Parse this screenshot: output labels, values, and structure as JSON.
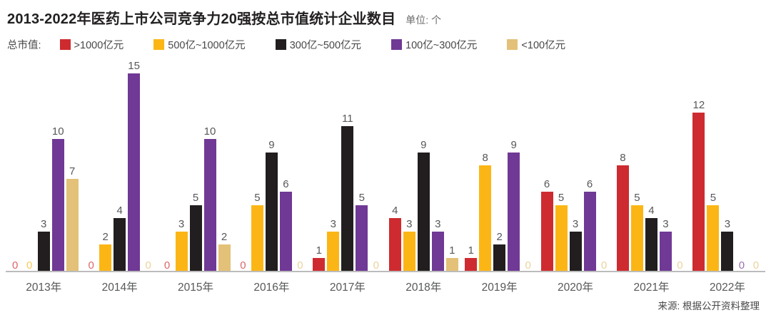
{
  "header": {
    "title": "2013-2022年医药上市公司竞争力20强按总市值统计企业数目",
    "unit": "单位: 个"
  },
  "legend": {
    "label": "总市值:"
  },
  "chart_data": {
    "type": "bar",
    "title": "2013-2022年医药上市公司竞争力20强按总市值统计企业数目",
    "unit": "个",
    "categories": [
      "2013年",
      "2014年",
      "2015年",
      "2016年",
      "2017年",
      "2018年",
      "2019年",
      "2020年",
      "2021年",
      "2022年"
    ],
    "series": [
      {
        "name": ">1000亿元",
        "color": "#ce2b30",
        "values": [
          0,
          0,
          0,
          0,
          1,
          4,
          1,
          6,
          8,
          12
        ]
      },
      {
        "name": "500亿~1000亿元",
        "color": "#fbb616",
        "values": [
          0,
          2,
          3,
          5,
          3,
          3,
          8,
          5,
          5,
          5
        ]
      },
      {
        "name": "300亿~500亿元",
        "color": "#221e1f",
        "values": [
          3,
          4,
          5,
          9,
          11,
          9,
          2,
          3,
          4,
          3
        ]
      },
      {
        "name": "100亿~300亿元",
        "color": "#703995",
        "values": [
          10,
          15,
          10,
          6,
          5,
          3,
          9,
          6,
          3,
          0
        ]
      },
      {
        "name": "<100亿元",
        "color": "#e3c178",
        "values": [
          7,
          0,
          2,
          0,
          0,
          1,
          0,
          0,
          0,
          0
        ]
      }
    ],
    "xlabel": "",
    "ylabel": "",
    "ylim": [
      0,
      15
    ],
    "grid": false,
    "legend_position": "top",
    "value_labels": true,
    "axis_color": "#bcbcbc",
    "label_color": "#57585a"
  },
  "footer": {
    "source": "来源: 根据公开资料整理"
  }
}
